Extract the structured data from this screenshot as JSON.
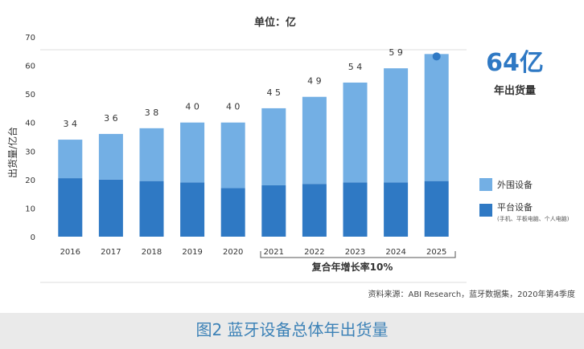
{
  "chart_data": {
    "type": "bar",
    "stacked": true,
    "unit_label": "单位：亿",
    "ylabel": "出货量/亿台",
    "xlabel": "",
    "ylim": [
      0,
      70
    ],
    "yticks": [
      0,
      10,
      20,
      30,
      40,
      50,
      60,
      70
    ],
    "grid": false,
    "categories": [
      "2016",
      "2017",
      "2018",
      "2019",
      "2020",
      "2021",
      "2022",
      "2023",
      "2024",
      "2025"
    ],
    "totals": [
      34,
      36,
      38,
      40,
      40,
      45,
      49,
      54,
      59,
      64
    ],
    "total_labels": [
      "3 4",
      "3 6",
      "3 8",
      "4 0",
      "4 0",
      "4 5",
      "4 9",
      "5 4",
      "5 9",
      ""
    ],
    "series": [
      {
        "name": "平台设备",
        "values": [
          20.5,
          20,
          19.5,
          19,
          17,
          18,
          18.5,
          19,
          19,
          19.5
        ]
      },
      {
        "name": "外围设备",
        "values": [
          13.5,
          16,
          18.5,
          21,
          23,
          27,
          30.5,
          35,
          40,
          44.5
        ]
      }
    ],
    "series_colors": {
      "platform": "#2f79c4",
      "peripheral": "#73afe4"
    },
    "legend": {
      "placement": "right",
      "items": [
        {
          "label": "外围设备",
          "note": ""
        },
        {
          "label": "平台设备",
          "note": "(手机、平板电脑、个人电脑)"
        }
      ]
    },
    "highlight": {
      "value": "64亿",
      "caption": "年出货量",
      "color": "#2f79c4"
    },
    "bracket_label": "复合年增长率10%",
    "source": "资料来源：ABI Research，蓝牙数据集，2020年第4季度"
  },
  "figure_caption": "图2 蓝牙设备总体年出货量"
}
